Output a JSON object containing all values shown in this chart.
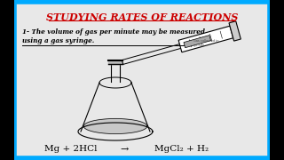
{
  "title": "STUDYING RATES OF REACTIONS",
  "title_color": "#cc0000",
  "bg_color": "#e8e8e8",
  "border_color": "#00aaff",
  "text1_line1": "1- The volume of gas per minute may be measured",
  "text1_line2": "using a gas syringe.",
  "equation_left": "Mg + 2HCl",
  "equation_arrow": "→",
  "equation_right": "MgCl₂ + H₂",
  "text_color": "#000000",
  "black_bar_width": 0.05
}
